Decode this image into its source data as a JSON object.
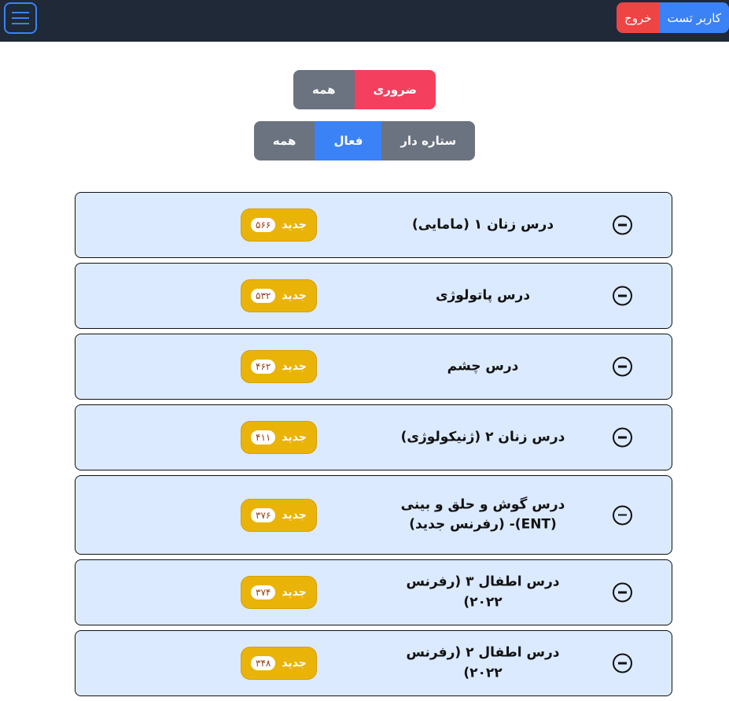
{
  "header": {
    "user": "کاربر تست",
    "logout": "خروج"
  },
  "filters1": [
    "ضروری",
    "همه"
  ],
  "filters2": [
    "ستاره دار",
    "فعال",
    "همه"
  ],
  "badge_label": "جدید",
  "courses": [
    {
      "title": "درس زنان ۱ (مامایی)",
      "count": "۵۶۶"
    },
    {
      "title": "درس پاتولوژی",
      "count": "۵۳۲"
    },
    {
      "title": "درس چشم",
      "count": "۴۶۲"
    },
    {
      "title": "درس زنان ۲ (ژنیکولوژی)",
      "count": "۴۱۱"
    },
    {
      "title": "درس گوش و حلق و بینی (ENT)- (رفرنس جدید)",
      "count": "۳۷۶"
    },
    {
      "title": "درس اطفال ۳ (رفرنس ۲۰۲۲)",
      "count": "۳۷۴"
    },
    {
      "title": "درس اطفال ۲ (رفرنس ۲۰۲۲)",
      "count": "۳۴۸"
    }
  ]
}
